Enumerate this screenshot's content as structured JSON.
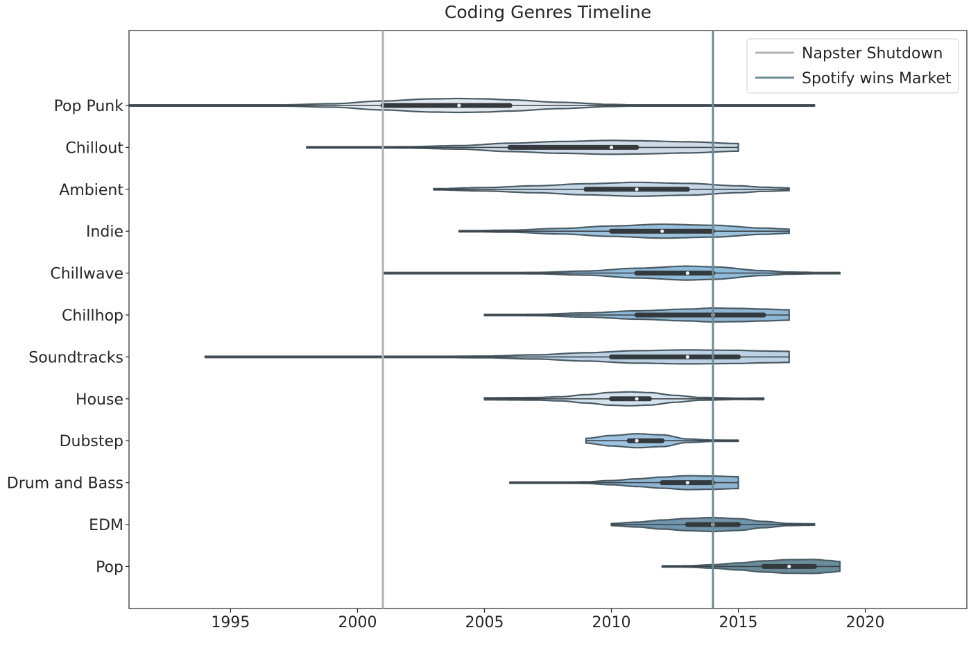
{
  "chart_data": {
    "type": "violin",
    "orientation": "horizontal",
    "title": "Coding Genres Timeline",
    "xlabel": "",
    "ylabel": "",
    "xlim": [
      1991,
      2024
    ],
    "xticks": [
      1995,
      2000,
      2005,
      2010,
      2015,
      2020
    ],
    "grid": false,
    "legend_position": "top-right",
    "reference_lines": [
      {
        "label": "Napster Shutdown",
        "x": 2001,
        "color": "#b3b3b3"
      },
      {
        "label": "Spotify wins Market",
        "x": 2014,
        "color": "#6e8a94"
      }
    ],
    "series": [
      {
        "name": "Pop Punk",
        "color": "#e2e8ee",
        "min": 1991,
        "q1": 2001,
        "median": 2004,
        "q3": 2006,
        "max": 2018,
        "density": [
          [
            1991,
            0.02
          ],
          [
            1994,
            0.03
          ],
          [
            1997,
            0.09
          ],
          [
            1999,
            0.25
          ],
          [
            2001,
            0.65
          ],
          [
            2003,
            0.95
          ],
          [
            2004,
            1.0
          ],
          [
            2005,
            0.95
          ],
          [
            2006,
            0.8
          ],
          [
            2008,
            0.45
          ],
          [
            2010,
            0.15
          ],
          [
            2011,
            0.07
          ],
          [
            2013,
            0.04
          ],
          [
            2016,
            0.03
          ],
          [
            2018,
            0.02
          ]
        ]
      },
      {
        "name": "Chillout",
        "color": "#cfdbe6",
        "min": 1998,
        "q1": 2006,
        "median": 2010,
        "q3": 2011,
        "max": 2015,
        "density": [
          [
            1998,
            0.04
          ],
          [
            2000,
            0.05
          ],
          [
            2002,
            0.1
          ],
          [
            2004,
            0.25
          ],
          [
            2006,
            0.6
          ],
          [
            2008,
            0.85
          ],
          [
            2010,
            1.0
          ],
          [
            2011,
            0.95
          ],
          [
            2013,
            0.8
          ],
          [
            2015,
            0.55
          ]
        ]
      },
      {
        "name": "Ambient",
        "color": "#c5d7e6",
        "min": 2003,
        "q1": 2009,
        "median": 2011,
        "q3": 2013,
        "max": 2017,
        "density": [
          [
            2003,
            0.08
          ],
          [
            2005,
            0.25
          ],
          [
            2007,
            0.5
          ],
          [
            2009,
            0.8
          ],
          [
            2011,
            1.0
          ],
          [
            2013,
            0.85
          ],
          [
            2015,
            0.5
          ],
          [
            2016,
            0.3
          ],
          [
            2017,
            0.2
          ]
        ]
      },
      {
        "name": "Indie",
        "color": "#9cc1dd",
        "min": 2004,
        "q1": 2010,
        "median": 2012,
        "q3": 2014,
        "max": 2017,
        "density": [
          [
            2004,
            0.05
          ],
          [
            2006,
            0.15
          ],
          [
            2008,
            0.4
          ],
          [
            2010,
            0.75
          ],
          [
            2012,
            1.0
          ],
          [
            2014,
            0.85
          ],
          [
            2016,
            0.45
          ],
          [
            2017,
            0.3
          ]
        ]
      },
      {
        "name": "Chillwave",
        "color": "#8fbad8",
        "min": 2001,
        "q1": 2011,
        "median": 2013,
        "q3": 2014,
        "max": 2019,
        "density": [
          [
            2001,
            0.02
          ],
          [
            2005,
            0.04
          ],
          [
            2007,
            0.1
          ],
          [
            2009,
            0.3
          ],
          [
            2011,
            0.7
          ],
          [
            2013,
            1.0
          ],
          [
            2014,
            0.9
          ],
          [
            2016,
            0.35
          ],
          [
            2017,
            0.15
          ],
          [
            2019,
            0.03
          ]
        ]
      },
      {
        "name": "Chillhop",
        "color": "#8fb6d2",
        "min": 2005,
        "q1": 2011,
        "median": 2014,
        "q3": 2016,
        "max": 2017,
        "density": [
          [
            2005,
            0.03
          ],
          [
            2007,
            0.1
          ],
          [
            2009,
            0.3
          ],
          [
            2011,
            0.6
          ],
          [
            2013,
            0.85
          ],
          [
            2014,
            1.0
          ],
          [
            2015,
            0.95
          ],
          [
            2016,
            0.85
          ],
          [
            2017,
            0.75
          ]
        ]
      },
      {
        "name": "Soundtracks",
        "color": "#bcd2e4",
        "min": 1994,
        "q1": 2010,
        "median": 2013,
        "q3": 2015,
        "max": 2017,
        "density": [
          [
            1994,
            0.02
          ],
          [
            1998,
            0.03
          ],
          [
            2002,
            0.05
          ],
          [
            2005,
            0.12
          ],
          [
            2007,
            0.3
          ],
          [
            2009,
            0.6
          ],
          [
            2011,
            0.9
          ],
          [
            2013,
            1.0
          ],
          [
            2015,
            0.95
          ],
          [
            2016,
            0.85
          ],
          [
            2017,
            0.8
          ]
        ]
      },
      {
        "name": "House",
        "color": "#d4e2ee",
        "min": 2005,
        "q1": 2010,
        "median": 2011,
        "q3": 2011.5,
        "max": 2016,
        "density": [
          [
            2005,
            0.15
          ],
          [
            2007,
            0.18
          ],
          [
            2008,
            0.3
          ],
          [
            2009,
            0.6
          ],
          [
            2010,
            0.92
          ],
          [
            2010.7,
            1.0
          ],
          [
            2011.5,
            0.9
          ],
          [
            2012.5,
            0.5
          ],
          [
            2013.5,
            0.2
          ],
          [
            2015,
            0.1
          ],
          [
            2016,
            0.12
          ]
        ]
      },
      {
        "name": "Dubstep",
        "color": "#9fc3df",
        "min": 2009,
        "q1": 2010.7,
        "median": 2011,
        "q3": 2012,
        "max": 2015,
        "density": [
          [
            2009,
            0.35
          ],
          [
            2010,
            0.75
          ],
          [
            2011,
            1.0
          ],
          [
            2012,
            0.85
          ],
          [
            2013,
            0.25
          ],
          [
            2014,
            0.1
          ],
          [
            2015,
            0.08
          ]
        ]
      },
      {
        "name": "Drum and Bass",
        "color": "#8eb5d2",
        "min": 2006,
        "q1": 2012,
        "median": 2013,
        "q3": 2014,
        "max": 2015,
        "density": [
          [
            2006,
            0.02
          ],
          [
            2008,
            0.05
          ],
          [
            2009,
            0.12
          ],
          [
            2010,
            0.3
          ],
          [
            2011,
            0.55
          ],
          [
            2012,
            0.8
          ],
          [
            2013,
            1.0
          ],
          [
            2014,
            0.95
          ],
          [
            2015,
            0.85
          ]
        ]
      },
      {
        "name": "EDM",
        "color": "#6f94ab",
        "min": 2010,
        "q1": 2013,
        "median": 2014,
        "q3": 2015,
        "max": 2018,
        "density": [
          [
            2010,
            0.15
          ],
          [
            2011,
            0.35
          ],
          [
            2012,
            0.65
          ],
          [
            2013,
            0.88
          ],
          [
            2014,
            1.0
          ],
          [
            2015,
            0.85
          ],
          [
            2016,
            0.45
          ],
          [
            2017,
            0.15
          ],
          [
            2018,
            0.1
          ]
        ]
      },
      {
        "name": "Pop",
        "color": "#6a8d9b",
        "min": 2012,
        "q1": 2016,
        "median": 2017,
        "q3": 2018,
        "max": 2019,
        "density": [
          [
            2012,
            0.05
          ],
          [
            2013,
            0.1
          ],
          [
            2014,
            0.25
          ],
          [
            2015,
            0.5
          ],
          [
            2016,
            0.8
          ],
          [
            2017,
            0.98
          ],
          [
            2018,
            1.0
          ],
          [
            2018.6,
            0.85
          ],
          [
            2019,
            0.7
          ]
        ]
      }
    ]
  }
}
